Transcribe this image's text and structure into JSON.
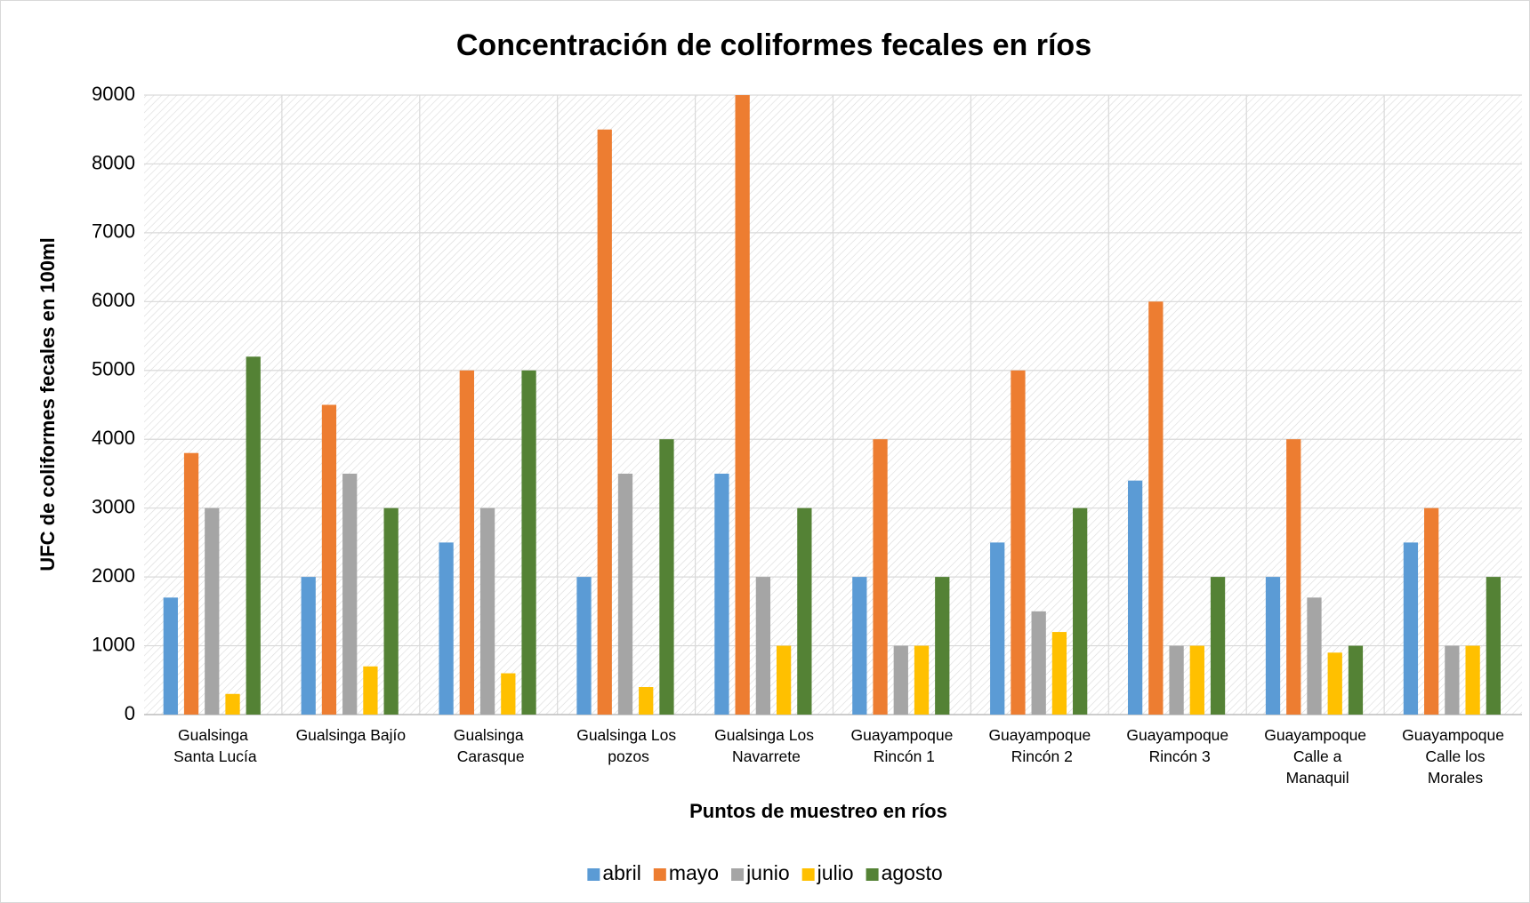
{
  "chart_data": {
    "type": "bar",
    "title": "Concentración de coliformes fecales en ríos",
    "x_label": "Puntos de muestreo en ríos",
    "y_label": "UFC de coliformes fecales en 100ml",
    "categories": [
      "Gualsinga Santa Lucía",
      "Gualsinga Bajío",
      "Gualsinga Carasque",
      "Gualsinga Los pozos",
      "Gualsinga Los Navarrete",
      "Guayampoque Rincón 1",
      "Guayampoque Rincón 2",
      "Guayampoque Rincón 3",
      "Guayampoque Calle a Manaquil",
      "Guayampoque Calle los Morales"
    ],
    "series": [
      {
        "name": "abril",
        "color": "#5b9bd5",
        "values": [
          1700,
          2000,
          2500,
          2000,
          3500,
          2000,
          2500,
          3400,
          2000,
          2500
        ]
      },
      {
        "name": "mayo",
        "color": "#ed7d31",
        "values": [
          3800,
          4500,
          5000,
          8500,
          9000,
          4000,
          5000,
          6000,
          4000,
          3000
        ]
      },
      {
        "name": "junio",
        "color": "#a5a5a5",
        "values": [
          3000,
          3500,
          3000,
          3500,
          2000,
          1000,
          1500,
          1000,
          1700,
          1000
        ]
      },
      {
        "name": "julio",
        "color": "#ffc000",
        "values": [
          300,
          700,
          600,
          400,
          1000,
          1000,
          1200,
          1000,
          900,
          1000
        ]
      },
      {
        "name": "agosto",
        "color": "#548235",
        "values": [
          5200,
          3000,
          5000,
          4000,
          3000,
          2000,
          3000,
          2000,
          1000,
          2000
        ]
      }
    ],
    "ylim": [
      0,
      9000
    ],
    "yticks": [
      0,
      1000,
      2000,
      3000,
      4000,
      5000,
      6000,
      7000,
      8000,
      9000
    ],
    "grid": true,
    "legend": "bottom"
  }
}
